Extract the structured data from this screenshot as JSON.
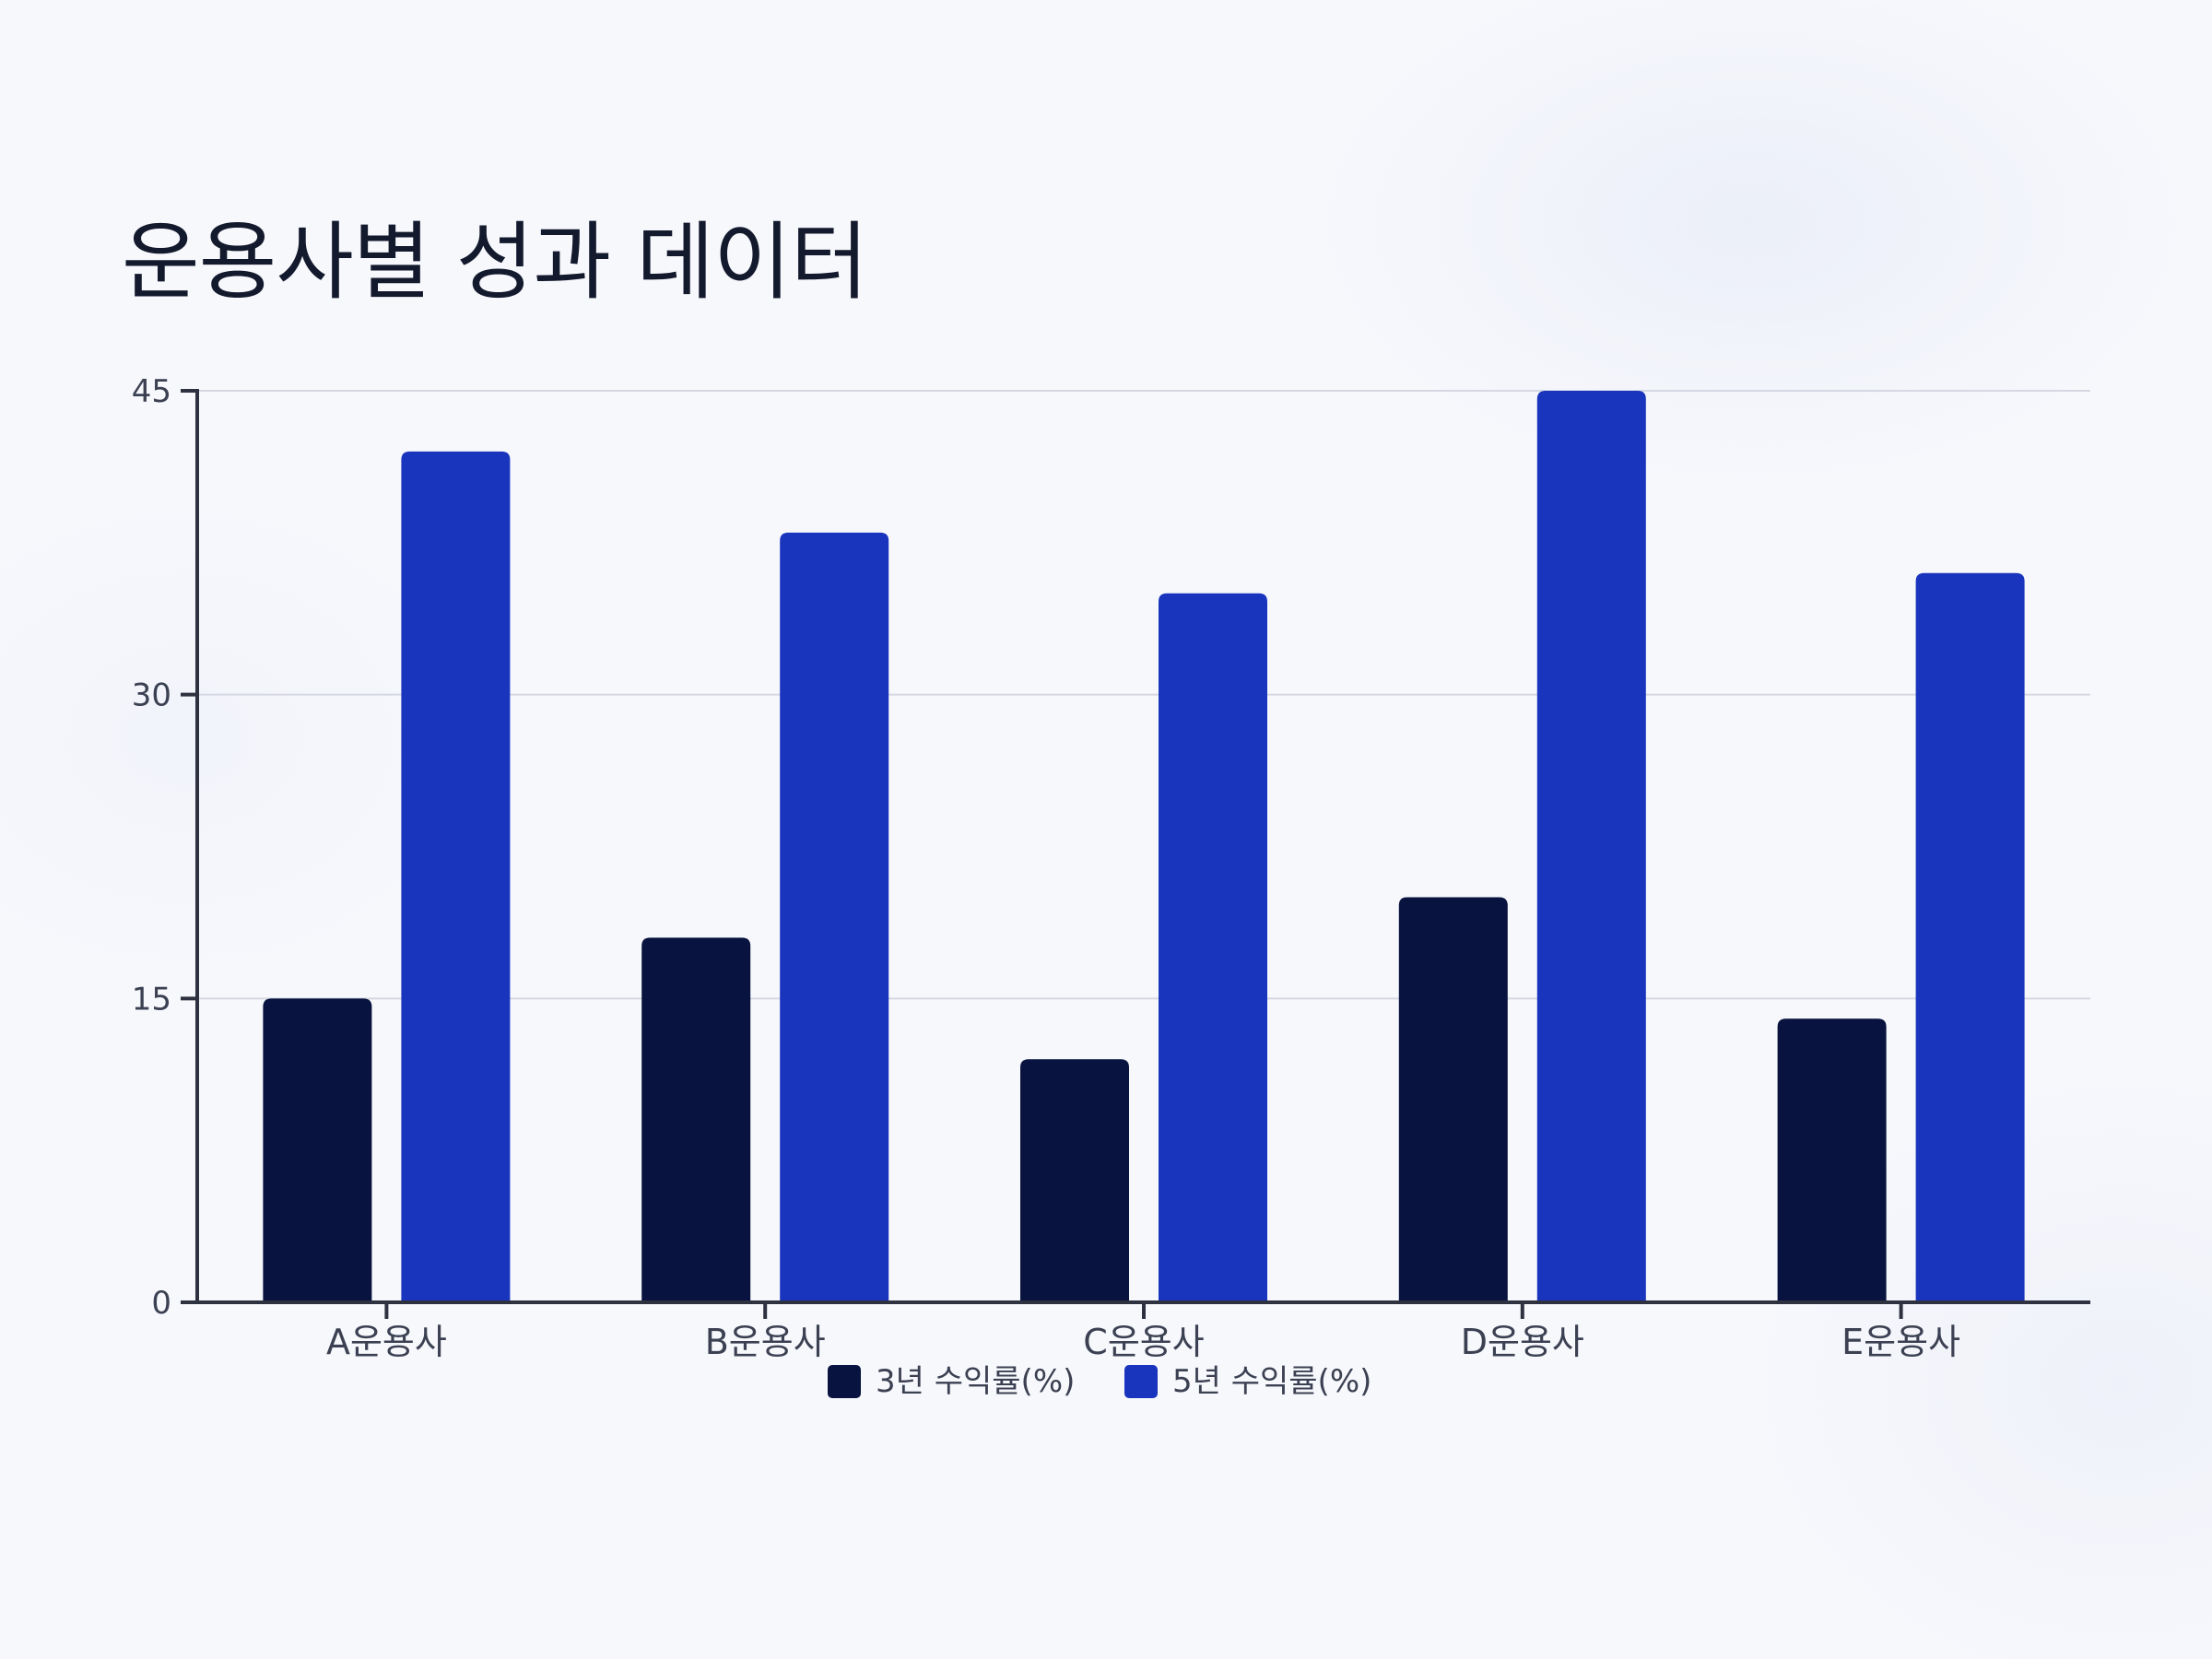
{
  "title": "운용사별 성과 데이터",
  "colors": {
    "series_3y": "#08143f",
    "series_5y": "#1a35bd",
    "grid": "#d5d8e3",
    "axis": "#2e3240",
    "text": "#3b4152",
    "background": "#f7f8fc"
  },
  "chart_data": {
    "type": "bar",
    "title": "운용사별 성과 데이터",
    "xlabel": "",
    "ylabel": "",
    "categories": [
      "A운용사",
      "B운용사",
      "C운용사",
      "D운용사",
      "E운용사"
    ],
    "series": [
      {
        "name": "3년 수익률(%)",
        "values": [
          15,
          18,
          12,
          20,
          14
        ]
      },
      {
        "name": "5년 수익률(%)",
        "values": [
          42,
          38,
          35,
          45,
          36
        ]
      }
    ],
    "ylim": [
      0,
      45
    ],
    "yticks": [
      0,
      15,
      30,
      45
    ],
    "ytick_labels": [
      "0",
      "15",
      "30",
      "45"
    ],
    "grid": true,
    "legend_position": "bottom-center"
  }
}
